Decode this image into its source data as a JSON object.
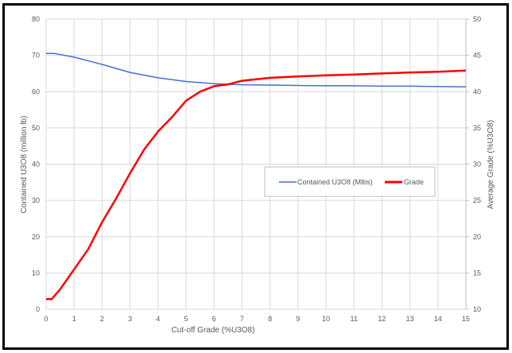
{
  "chart_data": {
    "type": "line",
    "xlabel": "Cut-off Grade (%U3O8)",
    "ylabel": "Contained U3O8 (million lb)",
    "y2label": "Average Grade (%U3O8)",
    "xlim": [
      0,
      15
    ],
    "ylim": [
      0,
      80
    ],
    "y2lim": [
      10,
      50
    ],
    "xticks": [
      0,
      1,
      2,
      3,
      4,
      5,
      6,
      7,
      8,
      9,
      10,
      11,
      12,
      13,
      14,
      15
    ],
    "yticks": [
      0,
      10,
      20,
      30,
      40,
      50,
      60,
      70,
      80
    ],
    "y2ticks": [
      10,
      15,
      20,
      25,
      30,
      35,
      40,
      45,
      50
    ],
    "grid": true,
    "legend_position": "center-right",
    "series": [
      {
        "name": "Contained U3O8 (Mlbs)",
        "axis": "left",
        "color": "#4472C4",
        "x": [
          0,
          0.3,
          1,
          2,
          3,
          4,
          5,
          6,
          7,
          8,
          9,
          10,
          11,
          12,
          13,
          14,
          15
        ],
        "y": [
          70.5,
          70.5,
          69.5,
          67.5,
          65.3,
          63.8,
          62.8,
          62.2,
          61.9,
          61.8,
          61.7,
          61.6,
          61.6,
          61.5,
          61.5,
          61.4,
          61.3
        ]
      },
      {
        "name": "Grade",
        "axis": "right",
        "color": "#FF0000",
        "x": [
          0,
          0.2,
          0.5,
          1,
          1.5,
          2,
          2.5,
          3,
          3.5,
          4,
          4.5,
          5,
          5.5,
          6,
          6.5,
          7,
          8,
          9,
          10,
          11,
          12,
          13,
          14,
          15
        ],
        "y": [
          11.4,
          11.4,
          12.75,
          15.5,
          18.25,
          22,
          25.25,
          28.75,
          32,
          34.5,
          36.5,
          38.75,
          40,
          40.75,
          41,
          41.5,
          41.9,
          42.1,
          42.25,
          42.35,
          42.5,
          42.65,
          42.75,
          42.9
        ]
      }
    ]
  }
}
